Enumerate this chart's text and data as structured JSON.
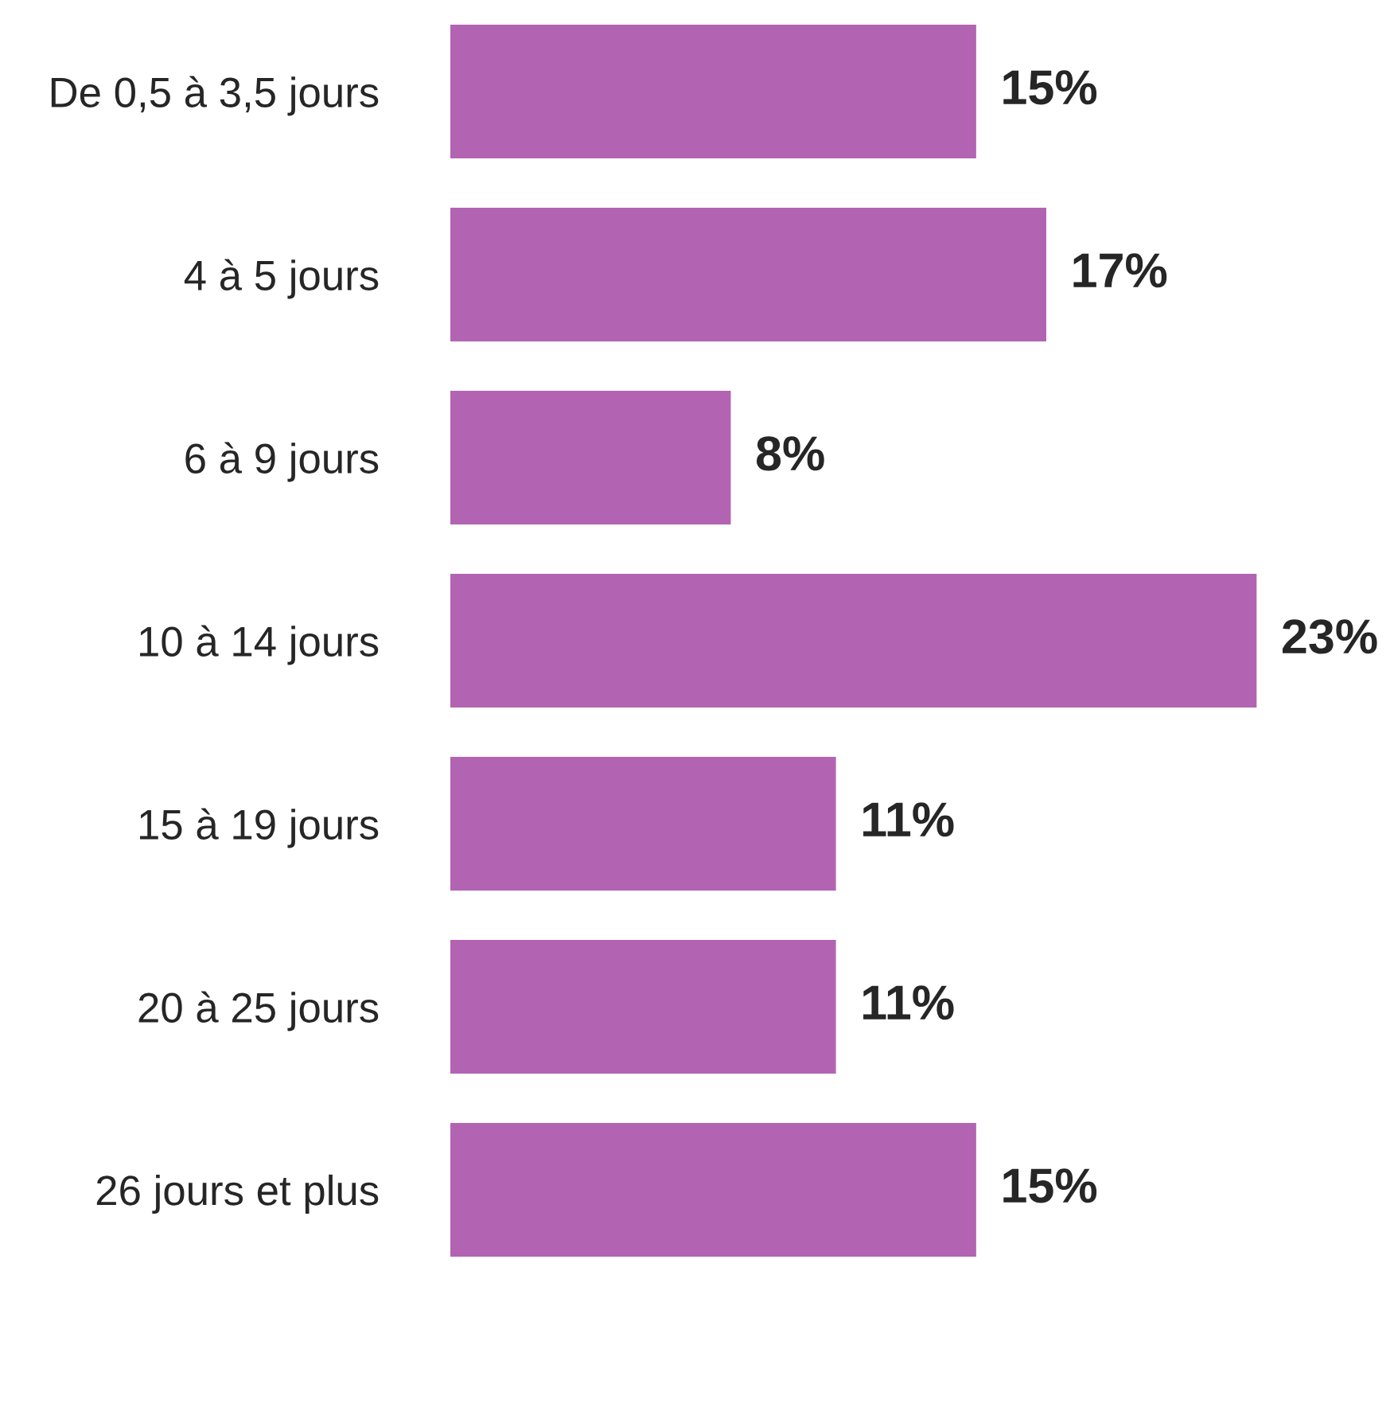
{
  "chart_data": {
    "type": "bar",
    "orientation": "horizontal",
    "categories": [
      "De 0,5 à 3,5 jours",
      "4 à 5 jours",
      "6 à 9 jours",
      "10 à 14 jours",
      "15 à 19 jours",
      "20 à 25 jours",
      "26 jours et plus"
    ],
    "values": [
      15,
      17,
      8,
      23,
      11,
      11,
      15
    ],
    "value_labels": [
      "15%",
      "17%",
      "8%",
      "23%",
      "11%",
      "11%",
      "15%"
    ],
    "color": "#b264b3",
    "tick_labels": "y",
    "grid": false,
    "legend": false
  }
}
